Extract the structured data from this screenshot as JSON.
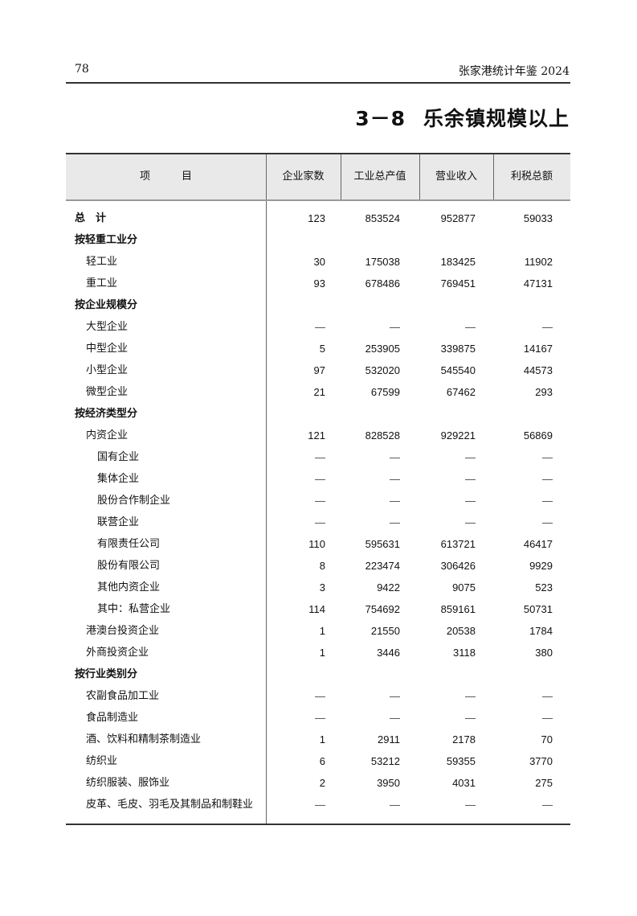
{
  "header": {
    "page_number": "78",
    "running_title": "张家港统计年鉴 2024"
  },
  "title": {
    "number": "3－8",
    "text": "乐余镇规模以上"
  },
  "table": {
    "columns": [
      "项　　　目",
      "企业家数",
      "工业总产值",
      "营业收入",
      "利税总额"
    ],
    "rows": [
      {
        "label": "总　计",
        "level": 0,
        "values": [
          "123",
          "853524",
          "952877",
          "59033"
        ]
      },
      {
        "label": "按轻重工业分",
        "level": 0,
        "values": [
          "",
          "",
          "",
          ""
        ]
      },
      {
        "label": "轻工业",
        "level": 1,
        "values": [
          "30",
          "175038",
          "183425",
          "11902"
        ]
      },
      {
        "label": "重工业",
        "level": 1,
        "values": [
          "93",
          "678486",
          "769451",
          "47131"
        ]
      },
      {
        "label": "按企业规模分",
        "level": 0,
        "values": [
          "",
          "",
          "",
          ""
        ]
      },
      {
        "label": "大型企业",
        "level": 1,
        "values": [
          "—",
          "—",
          "—",
          "—"
        ]
      },
      {
        "label": "中型企业",
        "level": 1,
        "values": [
          "5",
          "253905",
          "339875",
          "14167"
        ]
      },
      {
        "label": "小型企业",
        "level": 1,
        "values": [
          "97",
          "532020",
          "545540",
          "44573"
        ]
      },
      {
        "label": "微型企业",
        "level": 1,
        "values": [
          "21",
          "67599",
          "67462",
          "293"
        ]
      },
      {
        "label": "按经济类型分",
        "level": 0,
        "values": [
          "",
          "",
          "",
          ""
        ]
      },
      {
        "label": "内资企业",
        "level": 1,
        "values": [
          "121",
          "828528",
          "929221",
          "56869"
        ]
      },
      {
        "label": "国有企业",
        "level": 2,
        "values": [
          "—",
          "—",
          "—",
          "—"
        ]
      },
      {
        "label": "集体企业",
        "level": 2,
        "values": [
          "—",
          "—",
          "—",
          "—"
        ]
      },
      {
        "label": "股份合作制企业",
        "level": 2,
        "values": [
          "—",
          "—",
          "—",
          "—"
        ]
      },
      {
        "label": "联营企业",
        "level": 2,
        "values": [
          "—",
          "—",
          "—",
          "—"
        ]
      },
      {
        "label": "有限责任公司",
        "level": 2,
        "values": [
          "110",
          "595631",
          "613721",
          "46417"
        ]
      },
      {
        "label": "股份有限公司",
        "level": 2,
        "values": [
          "8",
          "223474",
          "306426",
          "9929"
        ]
      },
      {
        "label": "其他内资企业",
        "level": 2,
        "values": [
          "3",
          "9422",
          "9075",
          "523"
        ]
      },
      {
        "label": "其中：私营企业",
        "level": 2,
        "values": [
          "114",
          "754692",
          "859161",
          "50731"
        ]
      },
      {
        "label": "港澳台投资企业",
        "level": 1,
        "values": [
          "1",
          "21550",
          "20538",
          "1784"
        ]
      },
      {
        "label": "外商投资企业",
        "level": 1,
        "values": [
          "1",
          "3446",
          "3118",
          "380"
        ]
      },
      {
        "label": "按行业类别分",
        "level": 0,
        "values": [
          "",
          "",
          "",
          ""
        ]
      },
      {
        "label": "农副食品加工业",
        "level": 1,
        "values": [
          "—",
          "—",
          "—",
          "—"
        ]
      },
      {
        "label": "食品制造业",
        "level": 1,
        "values": [
          "—",
          "—",
          "—",
          "—"
        ]
      },
      {
        "label": "酒、饮料和精制茶制造业",
        "level": 1,
        "values": [
          "1",
          "2911",
          "2178",
          "70"
        ]
      },
      {
        "label": "纺织业",
        "level": 1,
        "values": [
          "6",
          "53212",
          "59355",
          "3770"
        ]
      },
      {
        "label": "纺织服装、服饰业",
        "level": 1,
        "values": [
          "2",
          "3950",
          "4031",
          "275"
        ]
      },
      {
        "label": "皮革、毛皮、羽毛及其制品和制鞋业",
        "level": 1,
        "values": [
          "—",
          "—",
          "—",
          "—"
        ]
      }
    ]
  }
}
